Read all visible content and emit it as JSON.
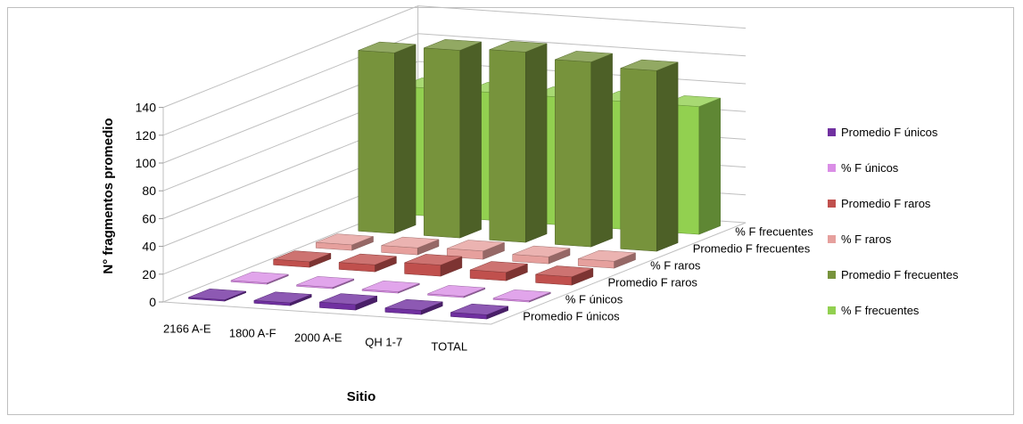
{
  "chart_data": {
    "type": "bar",
    "subtype": "3d-column",
    "title": "",
    "xlabel": "Sitio",
    "ylabel": "N° fragmentos promedio",
    "ylim": [
      0,
      140
    ],
    "yticks": [
      0,
      20,
      40,
      60,
      80,
      100,
      120,
      140
    ],
    "grid": true,
    "legend_position": "right",
    "categories": [
      "2166 A-E",
      "1800 A-F",
      "2000 A-E",
      "QH 1-7",
      "TOTAL"
    ],
    "series": [
      {
        "name": "Promedio F únicos",
        "color": "#7030A0",
        "values": [
          1,
          2,
          4,
          3,
          3
        ]
      },
      {
        "name": "% F únicos",
        "color": "#DA8EE6",
        "values": [
          1,
          1,
          1,
          1,
          1
        ]
      },
      {
        "name": "Promedio F raros",
        "color": "#C0504D",
        "values": [
          4,
          5,
          8,
          6,
          6
        ]
      },
      {
        "name": "% F raros",
        "color": "#E6A09D",
        "values": [
          4,
          5,
          6,
          5,
          5
        ]
      },
      {
        "name": "Promedio F frecuentes",
        "color": "#77933C",
        "values": [
          130,
          135,
          137,
          133,
          130
        ]
      },
      {
        "name": "% F frecuentes",
        "color": "#92D050",
        "values": [
          92,
          92,
          92,
          92,
          92
        ]
      }
    ]
  }
}
